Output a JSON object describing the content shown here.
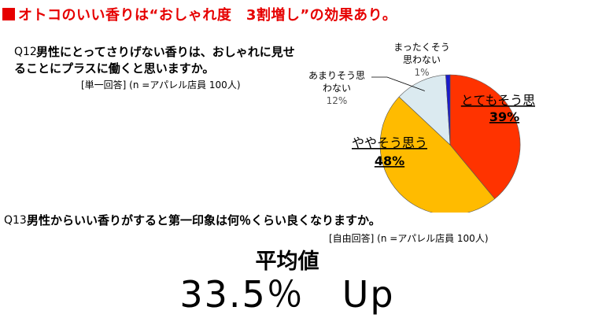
{
  "header": {
    "title": "オトコのいい香りは“おしゃれ度　3割増し”の効果あり。"
  },
  "q12": {
    "number": "Q12.",
    "line1": "男性にとってさりげない香りは、おしゃれに見せ",
    "line2": "ることにプラスに働くと思いますか。",
    "note": "[単一回答] (n =アパレル店員 100人)"
  },
  "q13": {
    "number": "Q13.",
    "text": "男性からいい香りがすると第一印象は何％くらい良くなりますか。",
    "note": "[自由回答] (n =アパレル店員 100人)"
  },
  "result": {
    "label": "平均値",
    "value": "33.5％　Up"
  },
  "chart_data": {
    "type": "pie",
    "start": "top",
    "direction": "clockwise",
    "slices": [
      {
        "label": "とてもそう思う",
        "pct_label": "39%",
        "value": 39,
        "color": "#ff3300"
      },
      {
        "label": "ややそう思う",
        "pct_label": "48%",
        "value": 48,
        "color": "#ffbb00"
      },
      {
        "label_lines": [
          "あまりそう思",
          "わない"
        ],
        "pct_label": "12%",
        "value": 12,
        "color": "#dbeaf0"
      },
      {
        "label_lines": [
          "まったくそう",
          "思わない"
        ],
        "pct_label": "1%",
        "value": 1,
        "color": "#1a1acc"
      }
    ]
  }
}
